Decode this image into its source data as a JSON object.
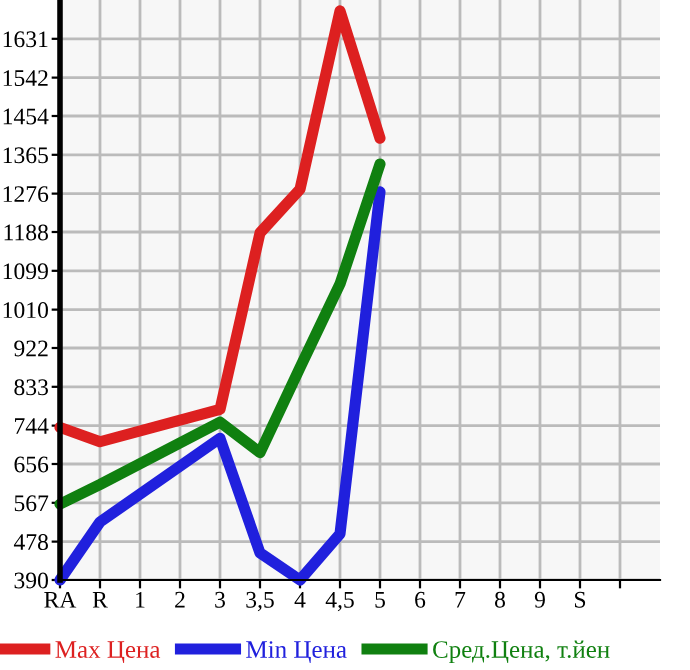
{
  "chart_data": {
    "type": "line",
    "categories": [
      "RA",
      "R",
      "1",
      "2",
      "3",
      "3,5",
      "4",
      "4,5",
      "5",
      "6",
      "7",
      "8",
      "9",
      "S",
      null
    ],
    "series": [
      {
        "name": "Max Цена",
        "color": "#dd2020",
        "values": [
          740,
          707,
          null,
          null,
          781,
          1186,
          1286,
          1695,
          1403,
          null,
          null,
          null,
          null,
          null,
          null
        ]
      },
      {
        "name": "Min Цена",
        "color": "#2020dd",
        "values": [
          390,
          523,
          null,
          null,
          715,
          452,
          390,
          496,
          1280,
          null,
          null,
          null,
          null,
          null,
          null
        ]
      },
      {
        "name": "Сред.Цена, т.йен",
        "color": "#108010",
        "values": [
          564,
          609,
          null,
          null,
          752,
          682,
          877,
          1069,
          1344,
          null,
          null,
          null,
          null,
          null,
          null
        ]
      }
    ],
    "ylim": [
      390,
      1720
    ],
    "yticks": [
      390,
      478,
      567,
      656,
      744,
      833,
      922,
      1010,
      1099,
      1188,
      1276,
      1365,
      1454,
      1542,
      1631
    ],
    "grid": true,
    "legend": "bottom",
    "marker": "none",
    "line_style": "solid"
  }
}
